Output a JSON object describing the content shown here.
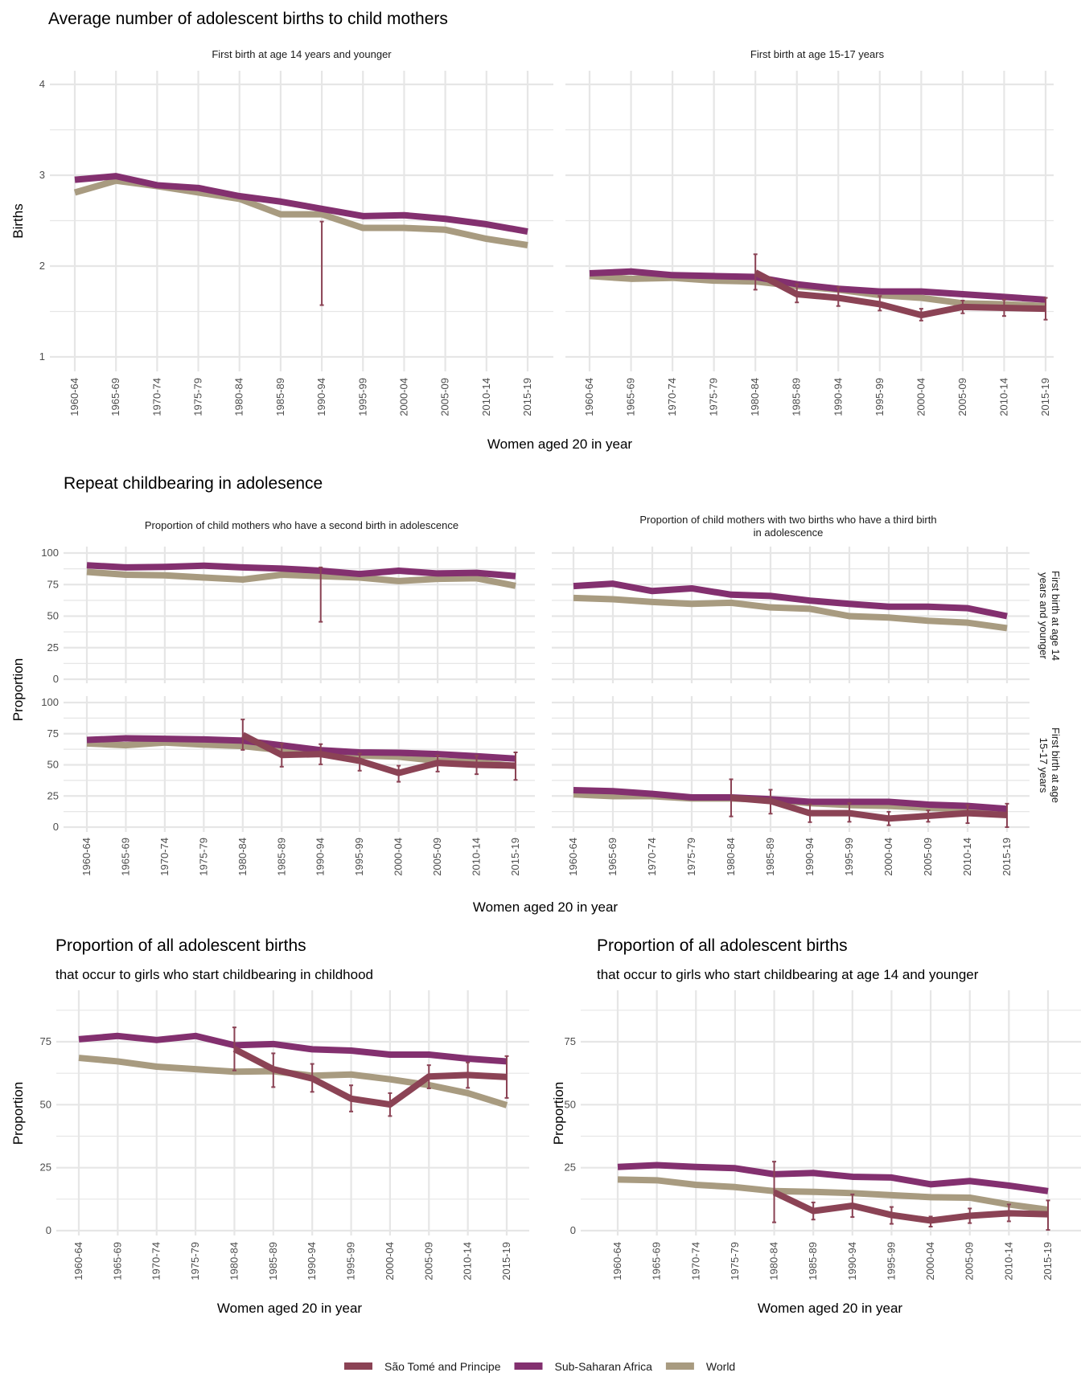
{
  "colors": {
    "sao_tome": "#8b4355",
    "ssa": "#83306f",
    "world": "#a89b80",
    "grid": "#e6e6e6"
  },
  "legend": [
    {
      "key": "sao_tome",
      "label": "São Tomé and Principe"
    },
    {
      "key": "ssa",
      "label": "Sub-Saharan Africa"
    },
    {
      "key": "world",
      "label": "World"
    }
  ],
  "chart_data": [
    {
      "type": "line",
      "id": "avg-births-14",
      "section_title": "Average number of adolescent births to child mothers",
      "title": "First birth at age 14 years and younger",
      "xlabel": "Women aged 20 in year",
      "ylabel": "Births",
      "ylim": [
        1,
        4
      ],
      "yticks": [
        1,
        2,
        3,
        4
      ],
      "categories": [
        "1960-64",
        "1965-69",
        "1970-74",
        "1975-79",
        "1980-84",
        "1985-89",
        "1990-94",
        "1995-99",
        "2000-04",
        "2005-09",
        "2010-14",
        "2015-19"
      ],
      "series": [
        {
          "name": "World",
          "key": "world",
          "values": [
            2.81,
            2.94,
            2.88,
            2.81,
            2.74,
            2.57,
            2.57,
            2.42,
            2.42,
            2.4,
            2.3,
            2.23
          ]
        },
        {
          "name": "Sub-Saharan Africa",
          "key": "ssa",
          "values": [
            2.95,
            2.99,
            2.89,
            2.86,
            2.77,
            2.71,
            2.63,
            2.55,
            2.56,
            2.52,
            2.46,
            2.38
          ]
        },
        {
          "name": "São Tomé and Principe",
          "key": "sao_tome",
          "values": [
            null,
            null,
            null,
            null,
            null,
            null,
            null,
            null,
            null,
            null,
            null,
            null
          ],
          "errorbars": [
            null,
            null,
            null,
            null,
            null,
            null,
            [
              1.57,
              2.49
            ],
            null,
            null,
            null,
            null,
            null
          ]
        }
      ]
    },
    {
      "type": "line",
      "id": "avg-births-15-17",
      "title": "First birth at age 15-17 years",
      "xlabel": "Women aged 20 in year",
      "ylabel": "Births",
      "ylim": [
        1,
        4
      ],
      "yticks": [
        1,
        2,
        3,
        4
      ],
      "categories": [
        "1960-64",
        "1965-69",
        "1970-74",
        "1975-79",
        "1980-84",
        "1985-89",
        "1990-94",
        "1995-99",
        "2000-04",
        "2005-09",
        "2010-14",
        "2015-19"
      ],
      "series": [
        {
          "name": "World",
          "key": "world",
          "values": [
            1.89,
            1.86,
            1.87,
            1.84,
            1.83,
            1.78,
            1.74,
            1.68,
            1.65,
            1.59,
            1.58,
            1.56
          ]
        },
        {
          "name": "Sub-Saharan Africa",
          "key": "ssa",
          "values": [
            1.92,
            1.94,
            1.9,
            1.89,
            1.88,
            1.8,
            1.75,
            1.72,
            1.72,
            1.69,
            1.66,
            1.63
          ]
        },
        {
          "name": "São Tomé and Principe",
          "key": "sao_tome",
          "values": [
            null,
            null,
            null,
            null,
            1.93,
            1.69,
            1.65,
            1.58,
            1.46,
            1.55,
            1.54,
            1.53
          ],
          "errorbars": [
            null,
            null,
            null,
            null,
            [
              1.74,
              2.13
            ],
            [
              1.6,
              1.8
            ],
            [
              1.56,
              1.77
            ],
            [
              1.51,
              1.67
            ],
            [
              1.4,
              1.53
            ],
            [
              1.48,
              1.62
            ],
            [
              1.45,
              1.63
            ],
            [
              1.41,
              1.65
            ]
          ]
        }
      ]
    },
    {
      "type": "line",
      "id": "second-birth-14",
      "section_title": "Repeat childbearing in adolesence",
      "title": "Proportion of child mothers who have a second birth in adolescence",
      "facet": "First birth at age 14 years and younger",
      "xlabel": "Women aged 20 in year",
      "ylabel": "Proportion",
      "ylim": [
        0,
        100
      ],
      "yticks": [
        0,
        25,
        50,
        75,
        100
      ],
      "categories": [
        "1960-64",
        "1965-69",
        "1970-74",
        "1975-79",
        "1980-84",
        "1985-89",
        "1990-94",
        "1995-99",
        "2000-04",
        "2005-09",
        "2010-14",
        "2015-19"
      ],
      "series": [
        {
          "name": "World",
          "key": "world",
          "values": [
            85,
            82.8,
            82.3,
            80.6,
            79,
            82.8,
            81.7,
            80.6,
            77.8,
            79.5,
            80,
            74
          ]
        },
        {
          "name": "Sub-Saharan Africa",
          "key": "ssa",
          "values": [
            90.3,
            88.6,
            89,
            90,
            88.6,
            87.7,
            86,
            83.4,
            86,
            83.8,
            84.3,
            81.7
          ]
        },
        {
          "name": "São Tomé and Principe",
          "key": "sao_tome",
          "values": [
            null,
            null,
            null,
            null,
            null,
            null,
            null,
            null,
            null,
            null,
            null,
            null
          ],
          "errorbars": [
            null,
            null,
            null,
            null,
            null,
            null,
            [
              45.5,
              88.6
            ],
            null,
            null,
            null,
            null,
            null
          ]
        }
      ]
    },
    {
      "type": "line",
      "id": "third-birth-14",
      "title": "Proportion of child mothers with two births who have a third birth in adolescence",
      "facet": "First birth at age 14 years and younger",
      "xlabel": "Women aged 20 in year",
      "ylabel": "Proportion",
      "ylim": [
        0,
        100
      ],
      "yticks": [
        0,
        25,
        50,
        75,
        100
      ],
      "categories": [
        "1960-64",
        "1965-69",
        "1970-74",
        "1975-79",
        "1980-84",
        "1985-89",
        "1990-94",
        "1995-99",
        "2000-04",
        "2005-09",
        "2010-14",
        "2015-19"
      ],
      "series": [
        {
          "name": "World",
          "key": "world",
          "values": [
            64.4,
            63.4,
            61.2,
            59.7,
            60.6,
            56.9,
            55.8,
            50,
            48.9,
            46.3,
            44.8,
            40.5
          ]
        },
        {
          "name": "Sub-Saharan Africa",
          "key": "ssa",
          "values": [
            73.8,
            75.7,
            69.9,
            72,
            67,
            66,
            62.3,
            59.7,
            57.5,
            57.5,
            56.3,
            50
          ]
        },
        {
          "name": "São Tomé and Principe",
          "key": "sao_tome",
          "values": [
            null,
            null,
            null,
            null,
            null,
            null,
            null,
            null,
            null,
            null,
            null,
            null
          ],
          "errorbars": []
        }
      ]
    },
    {
      "type": "line",
      "id": "second-birth-15-17",
      "title": "Proportion of child mothers who have a second birth in adolescence",
      "facet": "First birth at age 15-17 years",
      "xlabel": "Women aged 20 in year",
      "ylabel": "Proportion",
      "ylim": [
        0,
        100
      ],
      "yticks": [
        0,
        25,
        50,
        75,
        100
      ],
      "categories": [
        "1960-64",
        "1965-69",
        "1970-74",
        "1975-79",
        "1980-84",
        "1985-89",
        "1990-94",
        "1995-99",
        "2000-04",
        "2005-09",
        "2010-14",
        "2015-19"
      ],
      "series": [
        {
          "name": "World",
          "key": "world",
          "values": [
            67.2,
            65.7,
            67.9,
            66.2,
            65.1,
            61.8,
            59.7,
            57.5,
            56.5,
            53.2,
            52.2,
            49
          ]
        },
        {
          "name": "Sub-Saharan Africa",
          "key": "ssa",
          "values": [
            70,
            71.3,
            70.9,
            70.4,
            69.4,
            65.7,
            61.8,
            60,
            59.7,
            58.6,
            56.9,
            55
          ]
        },
        {
          "name": "São Tomé and Principe",
          "key": "sao_tome",
          "values": [
            null,
            null,
            null,
            null,
            74,
            57.9,
            58.6,
            53.2,
            43.5,
            51.5,
            50,
            49.4
          ],
          "errorbars": [
            null,
            null,
            null,
            null,
            [
              62,
              86.4
            ],
            [
              48.5,
              67
            ],
            [
              50.4,
              66.6
            ],
            [
              45.3,
              59
            ],
            [
              36.4,
              49.3
            ],
            [
              44.6,
              57.5
            ],
            [
              42.5,
              57.5
            ],
            [
              37.9,
              60
            ]
          ]
        }
      ]
    },
    {
      "type": "line",
      "id": "third-birth-15-17",
      "title": "Proportion of child mothers with two births who have a third birth in adolescence",
      "facet": "First birth at age 15-17 years",
      "xlabel": "Women aged 20 in year",
      "ylabel": "Proportion",
      "ylim": [
        0,
        100
      ],
      "yticks": [
        0,
        25,
        50,
        75,
        100
      ],
      "categories": [
        "1960-64",
        "1965-69",
        "1970-74",
        "1975-79",
        "1980-84",
        "1985-89",
        "1990-94",
        "1995-99",
        "2000-04",
        "2005-09",
        "2010-14",
        "2015-19"
      ],
      "series": [
        {
          "name": "World",
          "key": "world",
          "values": [
            26.3,
            24.8,
            24.8,
            23,
            23,
            22,
            19.2,
            17.7,
            17,
            15.5,
            14.4,
            12.3
          ]
        },
        {
          "name": "Sub-Saharan Africa",
          "key": "ssa",
          "values": [
            29.7,
            28.9,
            26.7,
            23.9,
            23.9,
            22.4,
            20.3,
            20.3,
            20.3,
            18.1,
            17,
            14.7
          ]
        },
        {
          "name": "São Tomé and Principe",
          "key": "sao_tome",
          "values": [
            null,
            null,
            null,
            null,
            23.5,
            20.9,
            11.2,
            11.2,
            6.9,
            9,
            11.2,
            9.7
          ],
          "errorbars": [
            null,
            null,
            null,
            null,
            [
              8.6,
              38.4
            ],
            [
              10.8,
              30
            ],
            [
              4,
              18.3
            ],
            [
              4.3,
              19.2
            ],
            [
              1.5,
              12.3
            ],
            [
              4.3,
              13.4
            ],
            [
              3.2,
              17.7
            ],
            [
              0,
              18.8
            ]
          ]
        }
      ]
    },
    {
      "type": "line",
      "id": "share-childhood",
      "title": "Proportion of all adolescent births",
      "subtitle": "that occur to girls who start childbearing in childhood",
      "xlabel": "Women aged 20 in year",
      "ylabel": "Proportion",
      "ylim": [
        0,
        92
      ],
      "yticks": [
        0,
        25,
        50,
        75
      ],
      "categories": [
        "1960-64",
        "1965-69",
        "1970-74",
        "1975-79",
        "1980-84",
        "1985-89",
        "1990-94",
        "1995-99",
        "2000-04",
        "2005-09",
        "2010-14",
        "2015-19"
      ],
      "series": [
        {
          "name": "World",
          "key": "world",
          "values": [
            68.6,
            67.2,
            65.1,
            64.1,
            63.1,
            63.3,
            61.5,
            62,
            60.1,
            57.8,
            54.6,
            49.8
          ]
        },
        {
          "name": "Sub-Saharan Africa",
          "key": "ssa",
          "values": [
            76,
            77.3,
            75.7,
            77.3,
            73.6,
            74.1,
            72,
            71.5,
            69.9,
            69.9,
            68.3,
            67.2
          ]
        },
        {
          "name": "São Tomé and Principe",
          "key": "sao_tome",
          "values": [
            null,
            null,
            null,
            null,
            72.1,
            64.1,
            60.4,
            52.4,
            50.1,
            61.2,
            61.8,
            61
          ],
          "errorbars": [
            null,
            null,
            null,
            null,
            [
              63.6,
              80.7
            ],
            [
              57,
              70.4
            ],
            [
              55.1,
              66.2
            ],
            [
              47.3,
              57.7
            ],
            [
              45.5,
              54.6
            ],
            [
              56.5,
              65.7
            ],
            [
              56.7,
              66.8
            ],
            [
              52.7,
              69.3
            ]
          ]
        }
      ]
    },
    {
      "type": "line",
      "id": "share-14",
      "title": "Proportion of all adolescent births",
      "subtitle": "that occur to girls who start childbearing at age 14 and younger",
      "xlabel": "Women aged 20 in year",
      "ylabel": "Proportion",
      "ylim": [
        0,
        92
      ],
      "yticks": [
        0,
        25,
        50,
        75
      ],
      "categories": [
        "1960-64",
        "1965-69",
        "1970-74",
        "1975-79",
        "1980-84",
        "1985-89",
        "1990-94",
        "1995-99",
        "2000-04",
        "2005-09",
        "2010-14",
        "2015-19"
      ],
      "series": [
        {
          "name": "World",
          "key": "world",
          "values": [
            20.3,
            20,
            18.2,
            17.3,
            15.7,
            15.4,
            14.9,
            14.1,
            13.3,
            13.1,
            10.4,
            8.3
          ]
        },
        {
          "name": "Sub-Saharan Africa",
          "key": "ssa",
          "values": [
            25.3,
            26,
            25.3,
            24.8,
            22.4,
            22.9,
            21.4,
            21.1,
            18.4,
            19.7,
            17.9,
            15.7
          ]
        },
        {
          "name": "São Tomé and Principe",
          "key": "sao_tome",
          "values": [
            null,
            null,
            null,
            null,
            15.2,
            7.8,
            9.9,
            6.2,
            4,
            5.9,
            6.9,
            6.5
          ],
          "errorbars": [
            null,
            null,
            null,
            null,
            [
              3.3,
              27.4
            ],
            [
              4.4,
              11.2
            ],
            [
              5.4,
              14.4
            ],
            [
              2.7,
              9.4
            ],
            [
              1.6,
              5.6
            ],
            [
              3,
              8.8
            ],
            [
              3.7,
              10.4
            ],
            [
              0.3,
              12
            ]
          ]
        }
      ]
    }
  ],
  "labels": {
    "section1_title": "Average number of adolescent births to child mothers",
    "section2_title": "Repeat childbearing in adolesence",
    "facet_row_1": [
      "First birth at age 14",
      "years and younger"
    ],
    "facet_row_2": [
      "First birth at age",
      "15-17 years"
    ],
    "xlabel": "Women aged 20 in year",
    "ylabel_births": "Births",
    "ylabel_proportion": "Proportion"
  }
}
